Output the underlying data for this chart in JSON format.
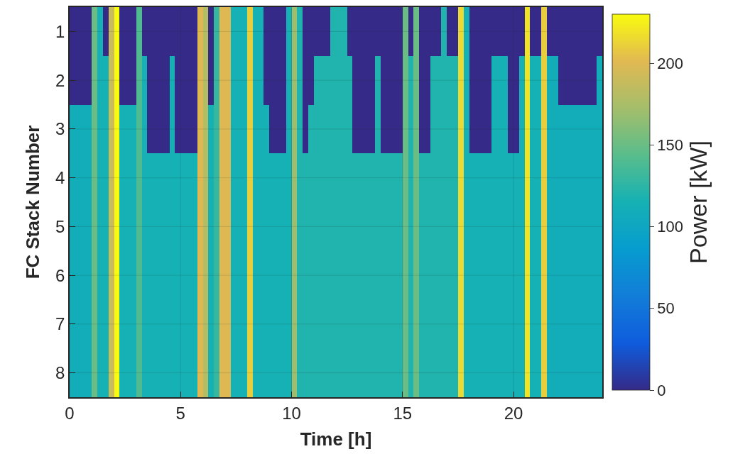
{
  "chart_data": {
    "type": "heatmap",
    "xlabel": "Time [h]",
    "ylabel": "FC Stack Number",
    "clabel": "Power [kW]",
    "x": [
      0.125,
      0.375,
      0.625,
      0.875,
      1.125,
      1.375,
      1.625,
      1.875,
      2.125,
      2.375,
      2.625,
      2.875,
      3.125,
      3.375,
      3.625,
      3.875,
      4.125,
      4.375,
      4.625,
      4.875,
      5.125,
      5.375,
      5.625,
      5.875,
      6.125,
      6.375,
      6.625,
      6.875,
      7.125,
      7.375,
      7.625,
      7.875,
      8.125,
      8.375,
      8.625,
      8.875,
      9.125,
      9.375,
      9.625,
      9.875,
      10.125,
      10.375,
      10.625,
      10.875,
      11.125,
      11.375,
      11.625,
      11.875,
      12.125,
      12.375,
      12.625,
      12.875,
      13.125,
      13.375,
      13.625,
      13.875,
      14.125,
      14.375,
      14.625,
      14.875,
      15.125,
      15.375,
      15.625,
      15.875,
      16.125,
      16.375,
      16.625,
      16.875,
      17.125,
      17.375,
      17.625,
      17.875,
      18.125,
      18.375,
      18.625,
      18.875,
      19.125,
      19.375,
      19.625,
      19.875,
      20.125,
      20.375,
      20.625,
      20.875,
      21.125,
      21.375,
      21.625,
      21.875,
      22.125,
      22.375,
      22.625,
      22.875,
      23.125,
      23.375,
      23.625,
      23.875
    ],
    "y_categories": [
      "1",
      "2",
      "3",
      "4",
      "5",
      "6",
      "7",
      "8"
    ],
    "cells": [
      [
        0,
        0,
        0,
        0,
        150,
        115,
        0,
        190,
        230,
        0,
        0,
        0,
        140,
        0,
        0,
        0,
        0,
        0,
        0,
        0,
        0,
        0,
        0,
        200,
        180,
        0,
        130,
        200,
        200,
        115,
        115,
        115,
        210,
        115,
        115,
        0,
        0,
        0,
        0,
        115,
        170,
        120,
        0,
        0,
        0,
        0,
        0,
        120,
        120,
        120,
        0,
        0,
        0,
        0,
        0,
        0,
        0,
        0,
        0,
        0,
        150,
        0,
        150,
        0,
        0,
        0,
        0,
        120,
        0,
        0,
        215,
        115,
        0,
        0,
        0,
        0,
        0,
        0,
        0,
        0,
        0,
        0,
        220,
        0,
        0,
        210,
        0,
        0,
        0,
        0,
        0,
        0,
        0,
        0,
        0,
        0
      ],
      [
        0,
        0,
        0,
        0,
        150,
        115,
        115,
        190,
        230,
        0,
        0,
        0,
        140,
        115,
        0,
        0,
        0,
        0,
        115,
        0,
        0,
        0,
        0,
        200,
        180,
        0,
        130,
        200,
        200,
        115,
        115,
        115,
        210,
        115,
        115,
        0,
        0,
        0,
        0,
        115,
        170,
        120,
        0,
        0,
        120,
        120,
        120,
        120,
        120,
        120,
        120,
        0,
        0,
        0,
        0,
        120,
        0,
        0,
        0,
        0,
        150,
        120,
        150,
        0,
        0,
        120,
        120,
        120,
        120,
        120,
        215,
        115,
        0,
        0,
        0,
        0,
        115,
        115,
        115,
        0,
        0,
        115,
        220,
        115,
        115,
        210,
        110,
        110,
        0,
        0,
        0,
        0,
        0,
        0,
        0,
        110
      ],
      [
        110,
        110,
        110,
        110,
        150,
        115,
        115,
        190,
        230,
        115,
        115,
        115,
        140,
        115,
        0,
        0,
        0,
        0,
        115,
        0,
        0,
        0,
        0,
        200,
        180,
        115,
        130,
        200,
        200,
        115,
        115,
        115,
        210,
        115,
        115,
        115,
        0,
        0,
        0,
        115,
        170,
        120,
        0,
        120,
        120,
        120,
        120,
        120,
        120,
        120,
        120,
        0,
        0,
        0,
        0,
        120,
        0,
        0,
        0,
        0,
        150,
        120,
        150,
        0,
        0,
        120,
        120,
        120,
        120,
        120,
        215,
        115,
        0,
        0,
        0,
        0,
        115,
        115,
        115,
        0,
        0,
        115,
        220,
        115,
        115,
        210,
        110,
        110,
        110,
        110,
        110,
        110,
        110,
        110,
        110,
        110
      ],
      [
        110,
        110,
        110,
        110,
        150,
        115,
        115,
        190,
        230,
        115,
        115,
        115,
        140,
        115,
        115,
        115,
        115,
        115,
        115,
        115,
        115,
        115,
        115,
        200,
        180,
        115,
        130,
        200,
        200,
        115,
        115,
        115,
        210,
        115,
        115,
        115,
        115,
        115,
        115,
        115,
        170,
        120,
        120,
        120,
        120,
        120,
        120,
        120,
        120,
        120,
        120,
        120,
        120,
        120,
        120,
        120,
        120,
        120,
        120,
        120,
        150,
        120,
        150,
        120,
        120,
        120,
        120,
        120,
        120,
        120,
        215,
        115,
        115,
        115,
        115,
        115,
        115,
        115,
        115,
        115,
        115,
        115,
        220,
        115,
        115,
        210,
        110,
        110,
        110,
        110,
        110,
        110,
        110,
        110,
        110,
        110
      ],
      [
        110,
        110,
        110,
        110,
        150,
        115,
        115,
        190,
        230,
        115,
        115,
        115,
        140,
        115,
        115,
        115,
        115,
        115,
        115,
        115,
        115,
        115,
        115,
        200,
        180,
        115,
        130,
        200,
        200,
        115,
        115,
        115,
        210,
        115,
        115,
        115,
        115,
        115,
        115,
        115,
        170,
        120,
        120,
        120,
        120,
        120,
        120,
        120,
        120,
        120,
        120,
        120,
        120,
        120,
        120,
        120,
        120,
        120,
        120,
        120,
        150,
        120,
        150,
        120,
        120,
        120,
        120,
        120,
        120,
        120,
        215,
        115,
        115,
        115,
        115,
        115,
        115,
        115,
        115,
        115,
        115,
        115,
        220,
        115,
        115,
        210,
        110,
        110,
        110,
        110,
        110,
        110,
        110,
        110,
        110,
        110
      ],
      [
        110,
        110,
        110,
        110,
        150,
        115,
        115,
        190,
        230,
        115,
        115,
        115,
        140,
        115,
        115,
        115,
        115,
        115,
        115,
        115,
        115,
        115,
        115,
        200,
        180,
        115,
        130,
        200,
        200,
        115,
        115,
        115,
        210,
        115,
        115,
        115,
        115,
        115,
        115,
        115,
        170,
        120,
        120,
        120,
        120,
        120,
        120,
        120,
        120,
        120,
        120,
        120,
        120,
        120,
        120,
        120,
        120,
        120,
        120,
        120,
        150,
        120,
        150,
        120,
        120,
        120,
        120,
        120,
        120,
        120,
        215,
        115,
        115,
        115,
        115,
        115,
        115,
        115,
        115,
        115,
        115,
        115,
        220,
        115,
        115,
        210,
        110,
        110,
        110,
        110,
        110,
        110,
        110,
        110,
        110,
        110
      ],
      [
        110,
        110,
        110,
        110,
        150,
        115,
        115,
        190,
        230,
        115,
        115,
        115,
        140,
        115,
        115,
        115,
        115,
        115,
        115,
        115,
        115,
        115,
        115,
        200,
        180,
        115,
        130,
        200,
        200,
        115,
        115,
        115,
        210,
        115,
        115,
        115,
        115,
        115,
        115,
        115,
        170,
        120,
        120,
        120,
        120,
        120,
        120,
        120,
        120,
        120,
        120,
        120,
        120,
        120,
        120,
        120,
        120,
        120,
        120,
        120,
        150,
        120,
        150,
        120,
        120,
        120,
        120,
        120,
        120,
        120,
        215,
        115,
        115,
        115,
        115,
        115,
        115,
        115,
        115,
        115,
        115,
        115,
        220,
        115,
        115,
        210,
        110,
        110,
        110,
        110,
        110,
        110,
        110,
        110,
        110,
        110
      ],
      [
        110,
        110,
        110,
        110,
        150,
        115,
        115,
        190,
        230,
        115,
        115,
        115,
        140,
        115,
        115,
        115,
        115,
        115,
        115,
        115,
        115,
        115,
        115,
        200,
        180,
        115,
        130,
        200,
        200,
        115,
        115,
        115,
        210,
        115,
        115,
        115,
        115,
        115,
        115,
        115,
        170,
        120,
        120,
        120,
        120,
        120,
        120,
        120,
        120,
        120,
        120,
        120,
        120,
        120,
        120,
        120,
        120,
        120,
        120,
        120,
        150,
        120,
        150,
        120,
        120,
        120,
        120,
        120,
        120,
        120,
        215,
        115,
        115,
        115,
        115,
        115,
        115,
        115,
        115,
        115,
        115,
        115,
        220,
        115,
        115,
        210,
        110,
        110,
        110,
        110,
        110,
        110,
        110,
        110,
        110,
        110
      ]
    ],
    "xlim": [
      0,
      24
    ],
    "xticks": [
      0,
      5,
      10,
      15,
      20
    ],
    "clim": [
      0,
      230
    ],
    "cticks": [
      0,
      50,
      100,
      150,
      200
    ],
    "grid": true
  }
}
